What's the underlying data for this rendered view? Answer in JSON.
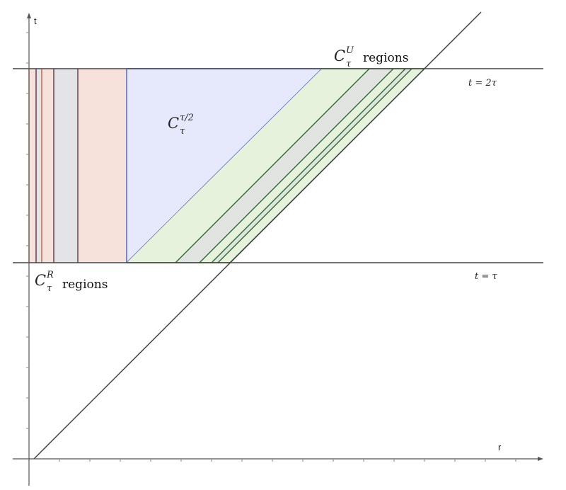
{
  "axes": {
    "x_label": "r",
    "y_label": "t"
  },
  "lines": {
    "upper": {
      "label": "t = 2τ"
    },
    "lower": {
      "label": "t = τ"
    }
  },
  "regions": {
    "C_R": {
      "symbol": "C",
      "subscript": "τ",
      "superscript": "R",
      "text": "regions"
    },
    "C_half": {
      "symbol": "C",
      "subscript": "τ",
      "superscript": "τ/2"
    },
    "C_U": {
      "symbol": "C",
      "subscript": "τ",
      "superscript": "U",
      "text": "regions"
    }
  },
  "colors": {
    "orange_stroke": "#b5582f",
    "orange_fill": "#f6e2da",
    "grey_fill": "#e3e3e8",
    "dark_stroke": "#4a2a3a",
    "blue_stroke": "#4a5fc1",
    "blue_fill": "#e6e8fb",
    "green_stroke": "#2e6a2e",
    "green_fill": "#e6f2dc",
    "green_grey_fill": "#e2e4e2"
  }
}
